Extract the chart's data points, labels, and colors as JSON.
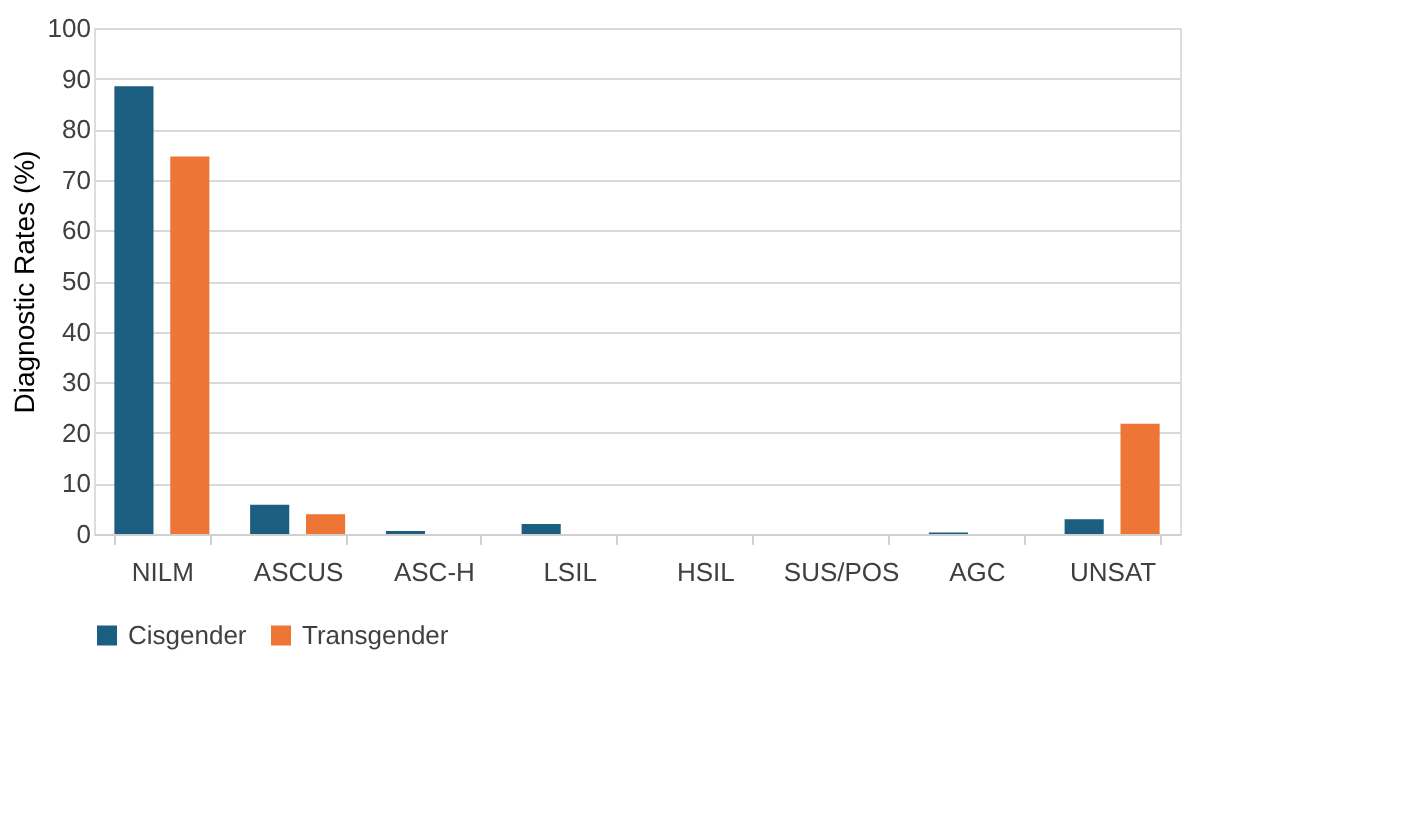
{
  "chart_data": {
    "type": "bar",
    "ylabel": "Diagnostic Rates (%)",
    "categories": [
      "NILM",
      "ASCUS",
      "ASC-H",
      "LSIL",
      "HSIL",
      "SUS/POS",
      "AGC",
      "UNSAT"
    ],
    "series": [
      {
        "name": "Cisgender",
        "color": "#1b5e80",
        "values": [
          88.5,
          5.8,
          0.6,
          2.0,
          0,
          0,
          0.3,
          2.9
        ]
      },
      {
        "name": "Transgender",
        "color": "#ed7536",
        "values": [
          74.6,
          3.9,
          0,
          0,
          0,
          0,
          0,
          21.8
        ]
      }
    ],
    "ylim": [
      0,
      100
    ],
    "yticks": [
      0,
      10,
      20,
      30,
      40,
      50,
      60,
      70,
      80,
      90,
      100
    ],
    "grid": "y",
    "legend": "bottom"
  }
}
